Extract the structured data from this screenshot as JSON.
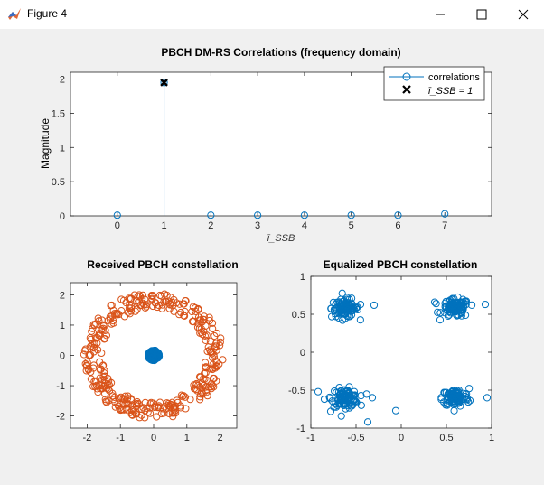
{
  "window": {
    "title": "Figure 4",
    "controls": [
      "minimize",
      "maximize",
      "close"
    ]
  },
  "chart_data": [
    {
      "type": "stem",
      "title": "PBCH DM-RS Correlations (frequency domain)",
      "xlabel": "ī_SSB",
      "ylabel": "Magnitude",
      "xlim": [
        -1,
        8
      ],
      "ylim": [
        0,
        2.1
      ],
      "xticks": [
        0,
        1,
        2,
        3,
        4,
        5,
        6,
        7
      ],
      "yticks": [
        0,
        0.5,
        1,
        1.5,
        2
      ],
      "series": [
        {
          "name": "correlations",
          "x": [
            0,
            1,
            2,
            3,
            4,
            5,
            6,
            7
          ],
          "values": [
            0.01,
            1.95,
            0.01,
            0.01,
            0.01,
            0.01,
            0.01,
            0.03
          ],
          "color": "#0072bd",
          "marker": "circle"
        },
        {
          "name": "ī_SSB = 1",
          "x": [
            1
          ],
          "values": [
            1.95
          ],
          "color": "#000000",
          "marker": "x"
        }
      ],
      "legend": "top-right",
      "grid": false
    },
    {
      "type": "scatter",
      "title": "Received PBCH constellation",
      "xlim": [
        -2.5,
        2.5
      ],
      "ylim": [
        -2.4,
        2.4
      ],
      "xticks": [
        -2,
        -1,
        0,
        1,
        2
      ],
      "yticks": [
        -2,
        -1,
        0,
        1,
        2
      ],
      "series": [
        {
          "name": "received",
          "shape": "ring",
          "center": [
            0,
            0
          ],
          "radius_range": [
            1.55,
            2.1
          ],
          "count": 380,
          "color": "#d95319"
        },
        {
          "name": "center",
          "shape": "blob",
          "center": [
            0,
            0
          ],
          "radius": 0.17,
          "count": 160,
          "color": "#0072bd"
        }
      ],
      "grid": false
    },
    {
      "type": "scatter",
      "title": "Equalized PBCH constellation",
      "xlim": [
        -1,
        1
      ],
      "ylim": [
        -1,
        1
      ],
      "xticks": [
        -1,
        -0.5,
        0,
        0.5,
        1
      ],
      "yticks": [
        -1,
        -0.5,
        0,
        0.5,
        1
      ],
      "series": [
        {
          "name": "equalized",
          "shape": "clusters",
          "centers": [
            [
              -0.62,
              0.58
            ],
            [
              0.6,
              0.58
            ],
            [
              -0.62,
              -0.6
            ],
            [
              0.6,
              -0.6
            ]
          ],
          "spread": 0.075,
          "count_per_cluster": 100,
          "color": "#0072bd",
          "outliers": [
            [
              -0.45,
              0.63
            ],
            [
              -0.3,
              0.62
            ],
            [
              -0.85,
              -0.62
            ],
            [
              -0.92,
              -0.52
            ],
            [
              -0.78,
              -0.78
            ],
            [
              -0.37,
              -0.92
            ],
            [
              -0.06,
              -0.77
            ],
            [
              0.37,
              0.66
            ],
            [
              0.93,
              0.63
            ],
            [
              0.95,
              -0.6
            ],
            [
              -0.32,
              -0.6
            ]
          ]
        }
      ],
      "grid": false
    }
  ]
}
